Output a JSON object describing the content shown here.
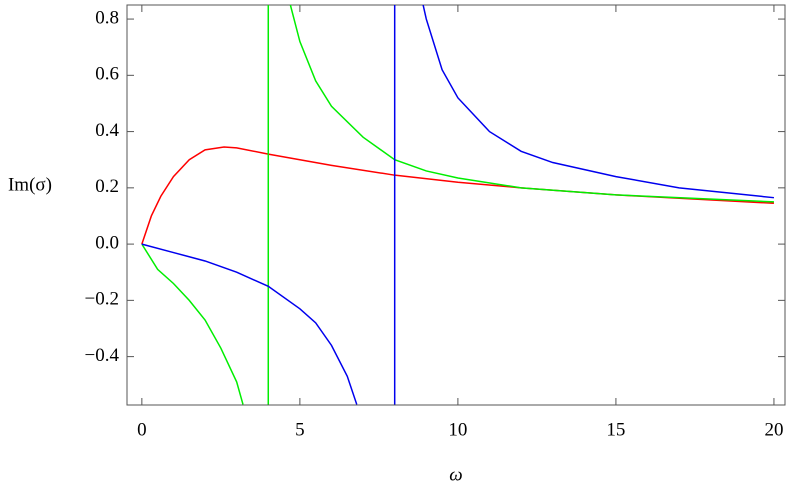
{
  "chart_data": {
    "type": "line",
    "xlabel": "ω",
    "ylabel": "Im(σ)",
    "xlim": [
      -0.47,
      20.35
    ],
    "ylim": [
      -0.572,
      0.85
    ],
    "xticks": [
      0,
      5,
      10,
      15,
      20
    ],
    "yticks": [
      {
        "value": -0.4,
        "label": "−0.4"
      },
      {
        "value": -0.2,
        "label": "−0.2"
      },
      {
        "value": 0,
        "label": "0.0"
      },
      {
        "value": 0.2,
        "label": "0.2"
      },
      {
        "value": 0.4,
        "label": "0.4"
      },
      {
        "value": 0.6,
        "label": "0.6"
      },
      {
        "value": 0.8,
        "label": "0.8"
      }
    ],
    "series": [
      {
        "color": "#ff0000",
        "x": [
          0,
          0.3,
          0.6,
          1,
          1.5,
          2,
          2.6,
          3,
          4,
          5,
          6,
          8,
          10,
          12,
          15,
          20
        ],
        "values": [
          0,
          0.1,
          0.17,
          0.24,
          0.3,
          0.335,
          0.345,
          0.342,
          0.32,
          0.3,
          0.28,
          0.245,
          0.22,
          0.2,
          0.175,
          0.145
        ]
      },
      {
        "color": "#00ee00",
        "x": [
          0,
          0.5,
          1,
          1.5,
          2,
          2.5,
          3,
          3.2,
          null,
          4,
          4,
          null,
          4.7,
          5,
          5.5,
          6,
          7,
          8,
          9,
          10,
          12,
          15,
          20
        ],
        "values": [
          0,
          -0.09,
          -0.14,
          -0.2,
          -0.27,
          -0.37,
          -0.49,
          -0.57,
          null,
          -0.57,
          0.85,
          null,
          0.85,
          0.72,
          0.58,
          0.49,
          0.38,
          0.3,
          0.26,
          0.235,
          0.2,
          0.175,
          0.15
        ]
      },
      {
        "color": "#0000ee",
        "x": [
          0,
          1,
          2,
          3,
          4,
          5,
          5.5,
          6,
          6.5,
          6.8,
          null,
          8,
          8,
          null,
          8.9,
          9,
          9.5,
          10,
          11,
          12,
          13,
          15,
          17,
          20
        ],
        "values": [
          0,
          -0.03,
          -0.06,
          -0.1,
          -0.15,
          -0.23,
          -0.28,
          -0.36,
          -0.47,
          -0.57,
          null,
          -0.57,
          0.85,
          null,
          0.85,
          0.8,
          0.62,
          0.52,
          0.4,
          0.33,
          0.29,
          0.24,
          0.2,
          0.165
        ]
      }
    ]
  }
}
